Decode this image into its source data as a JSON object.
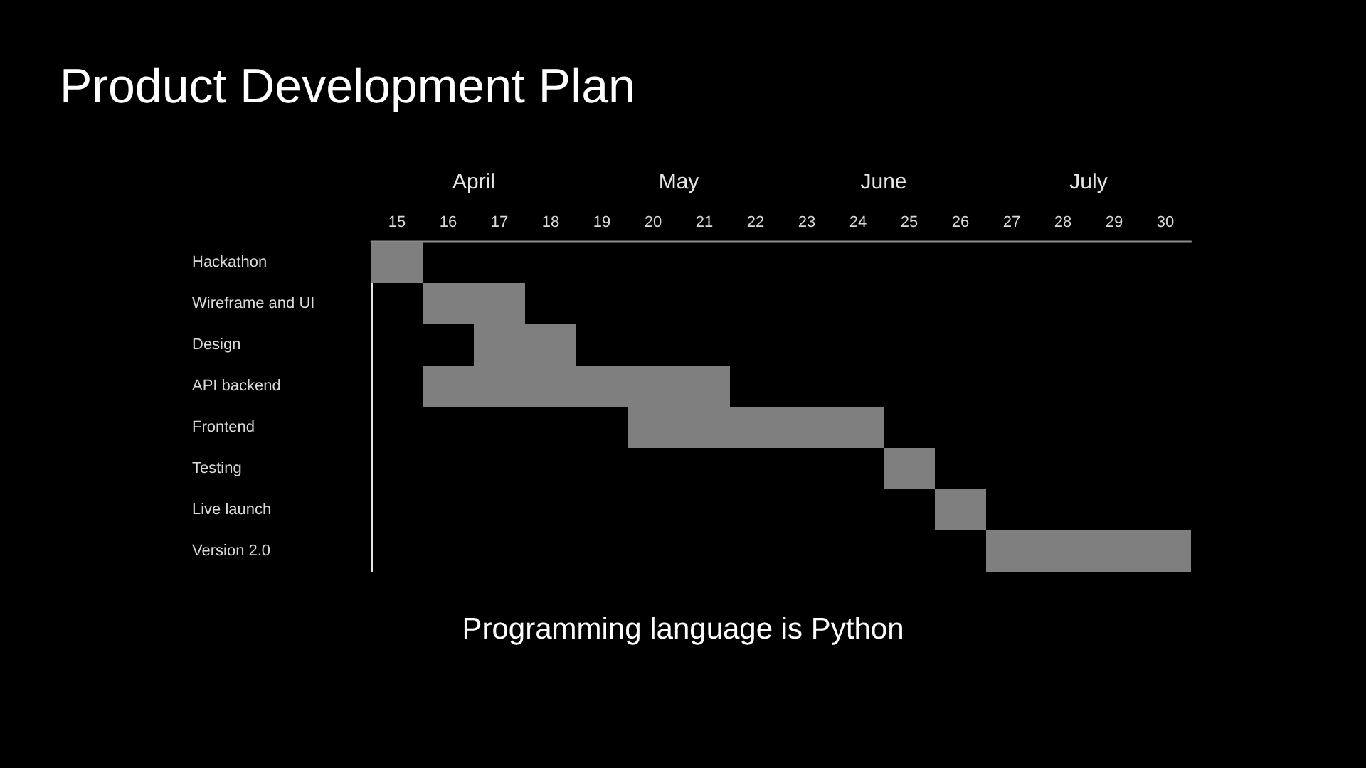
{
  "chart_data": {
    "type": "bar",
    "orientation": "horizontal",
    "title": "Product Development Plan",
    "categories": [
      "Hackathon",
      "Wireframe and UI",
      "Design",
      "API backend",
      "Frontend",
      "Testing",
      "Live launch",
      "Version 2.0"
    ],
    "base": [
      14.5,
      15.5,
      16.5,
      15.5,
      19.5,
      24.5,
      25.5,
      26.5
    ],
    "values": [
      1,
      2,
      2,
      6,
      5,
      1,
      1,
      4
    ],
    "color": "#7f7f7f",
    "xlim": [
      14.5,
      30.5
    ],
    "xticks": [
      15,
      16,
      17,
      18,
      19,
      20,
      21,
      22,
      23,
      24,
      25,
      26,
      27,
      28,
      29,
      30
    ],
    "annotations": [
      "April",
      "May",
      "June",
      "July",
      "Programming language is Python"
    ]
  }
}
